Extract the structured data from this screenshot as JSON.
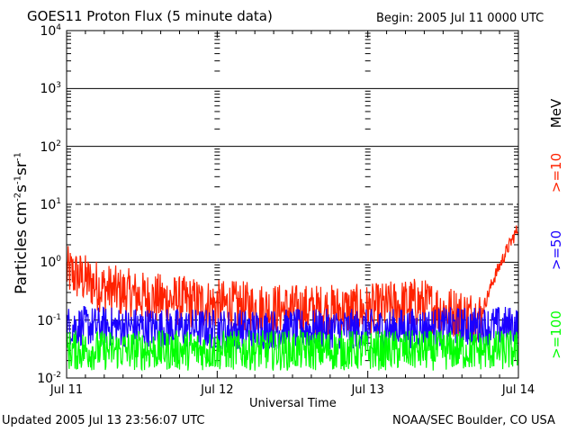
{
  "header": {
    "title": "GOES11 Proton Flux (5 minute data)",
    "begin": "Begin: 2005 Jul 11 0000 UTC"
  },
  "footer": {
    "updated": "Updated 2005 Jul 13 23:56:07 UTC",
    "credit": "NOAA/SEC Boulder, CO USA"
  },
  "chart_data": {
    "type": "line",
    "title": "GOES11 Proton Flux (5 minute data)",
    "xlabel": "Universal Time",
    "ylabel_base": "Particles cm",
    "ylabel_parts": [
      "-2",
      "s",
      "-1",
      "sr",
      "-1"
    ],
    "y_scale": "log",
    "ylim": [
      0.01,
      10000
    ],
    "y_ticks": [
      {
        "base": "10",
        "exp": "4"
      },
      {
        "base": "10",
        "exp": "3"
      },
      {
        "base": "10",
        "exp": "2"
      },
      {
        "base": "10",
        "exp": "1"
      },
      {
        "base": "10",
        "exp": "0"
      },
      {
        "base": "10",
        "exp": "-1"
      },
      {
        "base": "10",
        "exp": "-2"
      }
    ],
    "x_range": [
      "2005-07-11 00:00",
      "2005-07-14 00:00"
    ],
    "x_ticks": [
      "Jul 11",
      "Jul 12",
      "Jul 13",
      "Jul 14"
    ],
    "grid": "horizontal at decades; 10 and 0.1 lines dashed",
    "legend_unit": "MeV",
    "series": [
      {
        "name": ">=10",
        "color": "#ff2200",
        "x": [
          "2005-07-11 00:00",
          "2005-07-11 06:00",
          "2005-07-11 12:00",
          "2005-07-12 00:00",
          "2005-07-12 12:00",
          "2005-07-13 00:00",
          "2005-07-13 08:00",
          "2005-07-13 12:00",
          "2005-07-13 16:00",
          "2005-07-13 18:00",
          "2005-07-13 20:00",
          "2005-07-13 22:00",
          "2005-07-14 00:00"
        ],
        "values": [
          0.7,
          0.35,
          0.25,
          0.18,
          0.15,
          0.15,
          0.2,
          0.15,
          0.12,
          0.12,
          0.5,
          1.5,
          4.0
        ]
      },
      {
        "name": ">=50",
        "color": "#1a00ff",
        "x": [
          "2005-07-11 00:00",
          "2005-07-12 00:00",
          "2005-07-13 00:00",
          "2005-07-14 00:00"
        ],
        "values": [
          0.08,
          0.07,
          0.07,
          0.08
        ]
      },
      {
        "name": ">=100",
        "color": "#00ff00",
        "x": [
          "2005-07-11 00:00",
          "2005-07-12 00:00",
          "2005-07-13 00:00",
          "2005-07-14 00:00"
        ],
        "values": [
          0.03,
          0.03,
          0.03,
          0.03
        ]
      }
    ]
  }
}
